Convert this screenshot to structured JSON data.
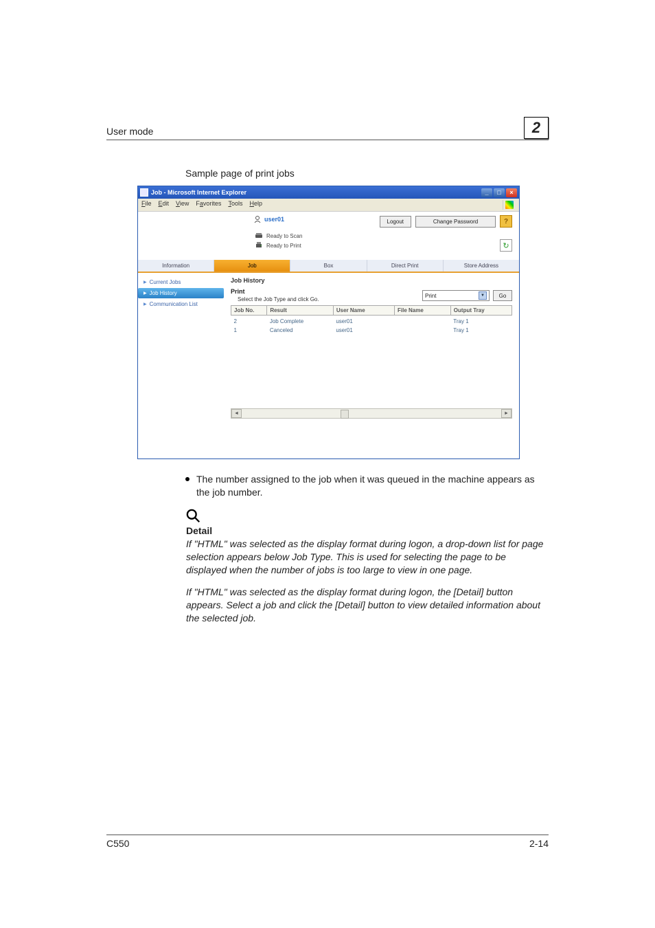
{
  "header": {
    "title": "User mode",
    "chapter_number": "2"
  },
  "caption": "Sample page of print jobs",
  "browser": {
    "title": "Job - Microsoft Internet Explorer",
    "menu": [
      "File",
      "Edit",
      "View",
      "Favorites",
      "Tools",
      "Help"
    ],
    "user": "user01",
    "buttons": {
      "logout": "Logout",
      "change_password": "Change Password"
    },
    "status": {
      "scan": "Ready to Scan",
      "print": "Ready to Print"
    },
    "tabs": [
      "Information",
      "Job",
      "Box",
      "Direct Print",
      "Store Address"
    ],
    "active_tab_index": 1,
    "leftnav": [
      {
        "label": "Current Jobs"
      },
      {
        "label": "Job History"
      },
      {
        "label": "Communication List"
      }
    ],
    "leftnav_active_index": 1,
    "section_title": "Job History",
    "sub_title": "Print",
    "sub_caption": "Select the Job Type and click Go.",
    "jobtype_value": "Print",
    "go_label": "Go",
    "table": {
      "columns": [
        "Job No.",
        "Result",
        "User Name",
        "File Name",
        "Output Tray"
      ],
      "col_widths": [
        "12%",
        "24%",
        "22%",
        "20%",
        "22%"
      ],
      "rows": [
        [
          "2",
          "Job Complete",
          "user01",
          "",
          "Tray 1"
        ],
        [
          "1",
          "Canceled",
          "user01",
          "",
          "Tray 1"
        ]
      ]
    }
  },
  "bullet_text": "The number assigned to the job when it was queued in the machine appears as the job number.",
  "detail": {
    "heading": "Detail",
    "para1": "If \"HTML\" was selected as the display format during logon, a drop-down list for page selection appears below Job Type. This is used for selecting the page to be displayed when the number of jobs is too large to view in one page.",
    "para2": "If \"HTML\" was selected as the display format during logon, the [Detail] button appears. Select a job and click the [Detail] button to view detailed information about the selected job."
  },
  "footer": {
    "left": "C550",
    "right": "2-14"
  }
}
